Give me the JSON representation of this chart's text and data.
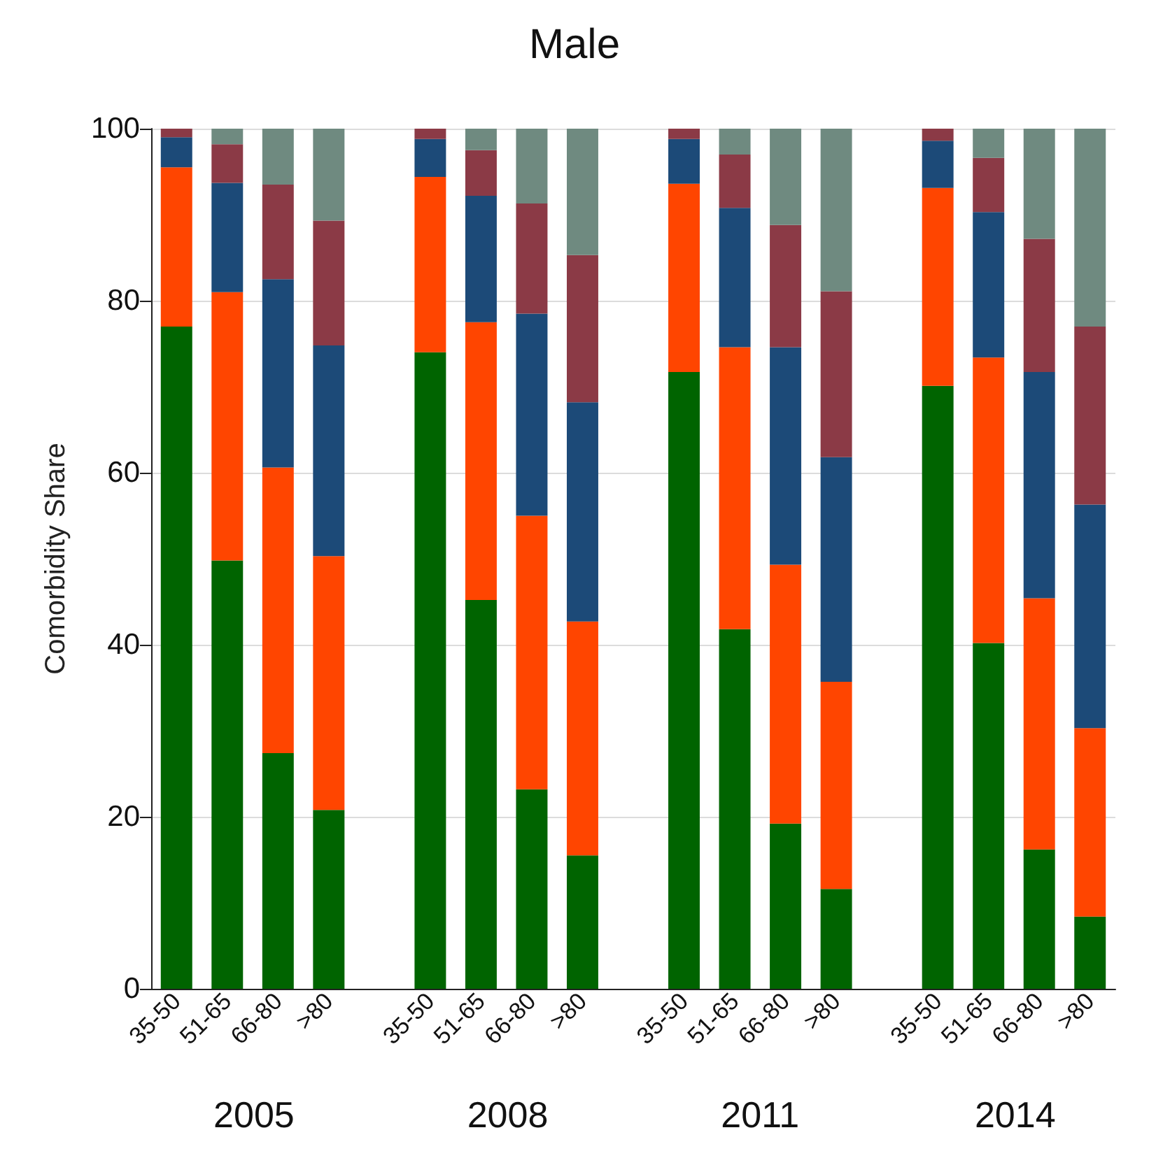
{
  "chart_data": {
    "type": "bar",
    "title": "Male",
    "ylabel": "Comorbidity Share",
    "stacked": true,
    "categories": [
      "35-50",
      "51-65",
      "66-80",
      ">80",
      null,
      "35-50",
      "51-65",
      "66-80",
      ">80",
      null,
      "35-50",
      "51-65",
      "66-80",
      ">80",
      null,
      "35-50",
      "51-65",
      "66-80",
      ">80"
    ],
    "series": [
      {
        "color": "#006400",
        "values": [
          77,
          49.8,
          27.4,
          20.8,
          null,
          74,
          45.2,
          23.2,
          15.5,
          null,
          71.7,
          41.8,
          19.2,
          11.6,
          null,
          70.1,
          40.2,
          16.2,
          8.4
        ]
      },
      {
        "color": "#ff4500",
        "values": [
          18.5,
          31.2,
          33.2,
          29.5,
          null,
          20.4,
          32.3,
          31.8,
          27.2,
          null,
          21.9,
          32.8,
          30.1,
          24.1,
          null,
          23,
          33.2,
          29.2,
          21.9
        ]
      },
      {
        "color": "#1c4a78",
        "values": [
          3.5,
          12.7,
          21.9,
          24.5,
          null,
          4.4,
          14.7,
          23.5,
          25.5,
          null,
          5.2,
          16.2,
          25.3,
          26.1,
          null,
          5.5,
          16.9,
          26.3,
          26
        ]
      },
      {
        "color": "#8b3a46",
        "values": [
          1,
          4.5,
          11,
          14.5,
          null,
          1.2,
          5.3,
          12.8,
          17.1,
          null,
          1.2,
          6.2,
          14.2,
          19.3,
          null,
          1.4,
          6.3,
          15.5,
          20.7
        ]
      },
      {
        "color": "#6f8a80",
        "values": [
          0,
          1.8,
          6.5,
          10.7,
          null,
          0,
          2.5,
          8.7,
          14.7,
          null,
          0,
          3,
          11.2,
          18.9,
          null,
          0,
          3.4,
          12.8,
          23
        ]
      }
    ],
    "ylim": [
      0,
      100
    ],
    "yticks": [
      0,
      20,
      40,
      60,
      80,
      100
    ],
    "grid": "y",
    "annotations": [
      "2005",
      "2008",
      "2011",
      "2014"
    ]
  }
}
